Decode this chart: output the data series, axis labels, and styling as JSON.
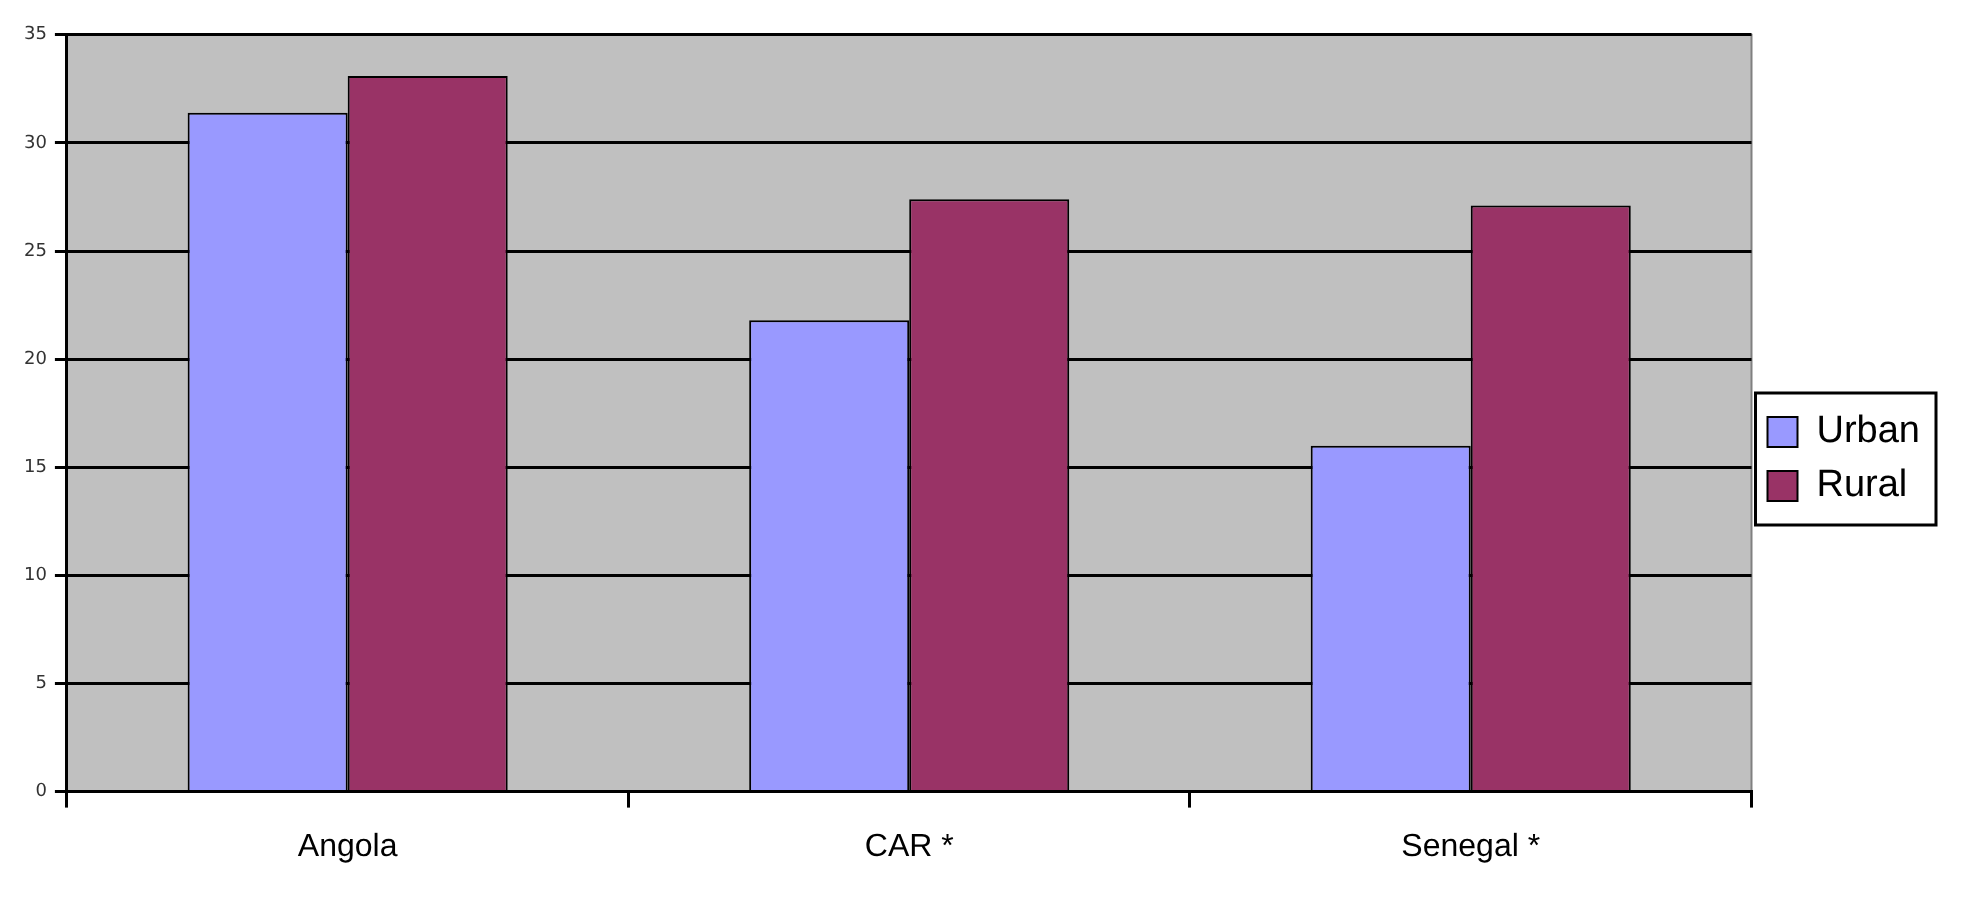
{
  "chart_data": {
    "type": "bar",
    "categories": [
      "Angola",
      "CAR *",
      "Senegal *"
    ],
    "series": [
      {
        "name": "Urban",
        "color": "#9999ff",
        "values": [
          31.4,
          21.8,
          16.0
        ]
      },
      {
        "name": "Rural",
        "color": "#993366",
        "values": [
          33.1,
          27.4,
          27.1
        ]
      }
    ],
    "ylim": [
      0,
      35
    ],
    "yticks": [
      0,
      5,
      10,
      15,
      20,
      25,
      30,
      35
    ],
    "grid": "y",
    "legend": "right"
  }
}
